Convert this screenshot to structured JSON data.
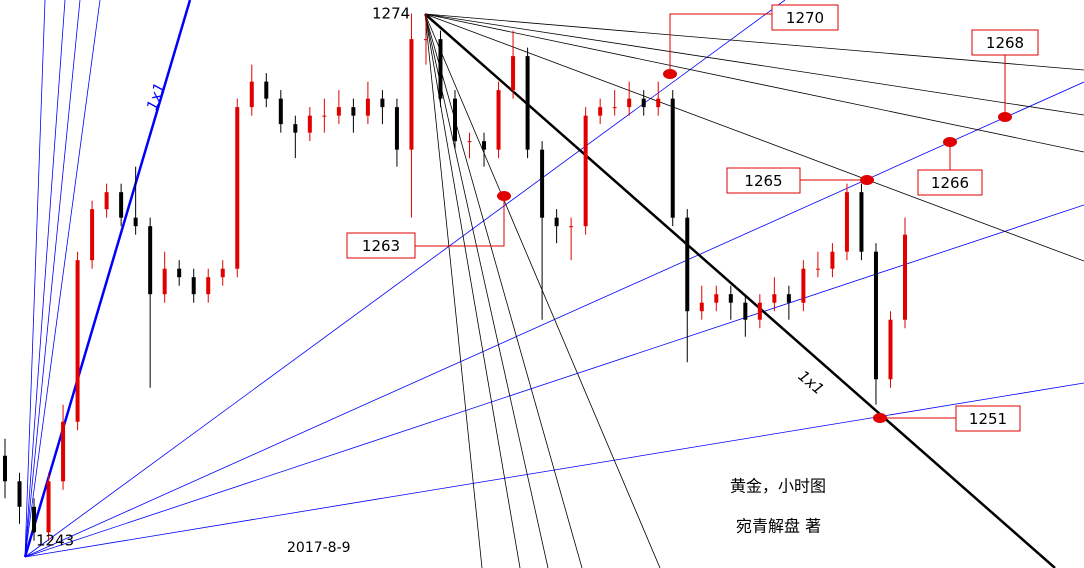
{
  "chart_data": {
    "type": "candlestick",
    "title": "黄金，小时图",
    "author": "宛青解盘 著",
    "date": "2017-8-9",
    "high_label": 1274,
    "low_label": 1243,
    "fan_labels": [
      "1x1",
      "1x1"
    ],
    "levels": [
      1270,
      1268,
      1265,
      1266,
      1263,
      1251
    ],
    "up_color": "#e00000",
    "down_color": "#000000",
    "ylim": [
      1241.4,
      1274.8
    ],
    "candles": [
      [
        1248,
        1249,
        1245.5,
        1246.5
      ],
      [
        1246.5,
        1247,
        1244,
        1245
      ],
      [
        1245,
        1245.5,
        1243,
        1243.5
      ],
      [
        1243.5,
        1247,
        1243,
        1246.5
      ],
      [
        1246.5,
        1251,
        1246,
        1250
      ],
      [
        1250,
        1260,
        1249.5,
        1259.5
      ],
      [
        1259.5,
        1263,
        1259,
        1262.5
      ],
      [
        1262.5,
        1264,
        1262,
        1263.5
      ],
      [
        1263.5,
        1264,
        1261.5,
        1262
      ],
      [
        1262,
        1265,
        1261,
        1261.5
      ],
      [
        1261.5,
        1262,
        1252,
        1257.5
      ],
      [
        1257.5,
        1260,
        1257,
        1259
      ],
      [
        1259,
        1259.5,
        1258,
        1258.5
      ],
      [
        1258.5,
        1259,
        1257,
        1257.5
      ],
      [
        1257.5,
        1259,
        1257,
        1258.5
      ],
      [
        1258.5,
        1259.5,
        1258,
        1259
      ],
      [
        1259,
        1269,
        1258.5,
        1268.5
      ],
      [
        1268.5,
        1271,
        1268,
        1270
      ],
      [
        1270,
        1270.5,
        1268.5,
        1269
      ],
      [
        1269,
        1269.5,
        1267,
        1267.5
      ],
      [
        1267.5,
        1268,
        1265.5,
        1267
      ],
      [
        1267,
        1268.5,
        1266.5,
        1268
      ],
      [
        1268,
        1269,
        1267,
        1268
      ],
      [
        1268,
        1269.5,
        1267.5,
        1268.5
      ],
      [
        1268.5,
        1269,
        1267,
        1268
      ],
      [
        1268,
        1270,
        1267.5,
        1269
      ],
      [
        1269,
        1269.5,
        1267.5,
        1268.5
      ],
      [
        1268.5,
        1269,
        1265,
        1266
      ],
      [
        1266,
        1274,
        1262,
        1272.5
      ],
      [
        1272.5,
        1274,
        1271,
        1272.5
      ],
      [
        1272.5,
        1273,
        1268.5,
        1269
      ],
      [
        1269,
        1269.5,
        1266,
        1266.5
      ],
      [
        1266.5,
        1267,
        1265.5,
        1266.5
      ],
      [
        1266.5,
        1267,
        1265,
        1266
      ],
      [
        1266,
        1270,
        1265.5,
        1269.5
      ],
      [
        1269.5,
        1273,
        1269,
        1271.5
      ],
      [
        1271.5,
        1272,
        1265.5,
        1266
      ],
      [
        1266,
        1266.5,
        1256,
        1262
      ],
      [
        1262,
        1262.5,
        1260.5,
        1261.5
      ],
      [
        1261.5,
        1262,
        1259.5,
        1261.5
      ],
      [
        1261.5,
        1268.5,
        1261,
        1268
      ],
      [
        1268,
        1269,
        1267.5,
        1268.5
      ],
      [
        1268.5,
        1269.5,
        1268,
        1268.5
      ],
      [
        1268.5,
        1270,
        1268,
        1269
      ],
      [
        1269,
        1269.5,
        1268,
        1268.5
      ],
      [
        1268.5,
        1270,
        1268,
        1269
      ],
      [
        1269,
        1269.5,
        1261.5,
        1262
      ],
      [
        1262,
        1262.5,
        1253.5,
        1256.5
      ],
      [
        1256.5,
        1258,
        1256,
        1257
      ],
      [
        1257,
        1258,
        1256.5,
        1257.5
      ],
      [
        1257.5,
        1258,
        1256,
        1257
      ],
      [
        1257,
        1257.5,
        1255,
        1256
      ],
      [
        1256,
        1257.5,
        1255.5,
        1257
      ],
      [
        1257,
        1258.5,
        1256.5,
        1257.5
      ],
      [
        1257.5,
        1258,
        1256,
        1257
      ],
      [
        1257,
        1259.5,
        1256.5,
        1259
      ],
      [
        1259,
        1260,
        1258.5,
        1259
      ],
      [
        1259,
        1260.5,
        1258.5,
        1260
      ],
      [
        1260,
        1264,
        1259.5,
        1263.5
      ],
      [
        1263.5,
        1264,
        1259.5,
        1260
      ],
      [
        1260,
        1260.5,
        1251,
        1252.5
      ],
      [
        1252.5,
        1256.5,
        1252,
        1256
      ],
      [
        1256,
        1262,
        1255.5,
        1261
      ]
    ]
  }
}
